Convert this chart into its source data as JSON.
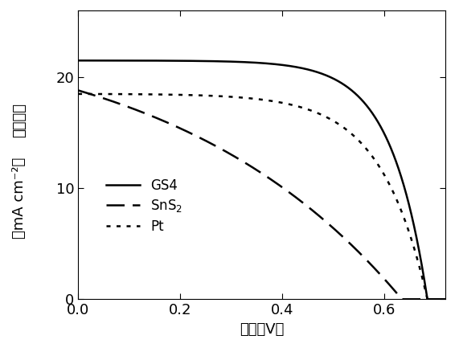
{
  "xlabel": "电压（V）",
  "ylabel_cn": "电流密度",
  "ylabel_en": "（mA cm⁻²）",
  "xlim": [
    0.0,
    0.72
  ],
  "ylim": [
    0.0,
    26.0
  ],
  "xticks": [
    0.0,
    0.2,
    0.4,
    0.6
  ],
  "yticks": [
    0,
    10,
    20
  ],
  "background_color": "#ffffff",
  "line_color": "#000000",
  "GS4": {
    "label": "GS4",
    "Isc": 21.5,
    "Voc": 0.685,
    "n": 14
  },
  "SnS2": {
    "label": "SnS$_2$",
    "Isc": 25.0,
    "Voc": 0.635,
    "n": 2.2
  },
  "Pt": {
    "label": "Pt",
    "Isc": 18.5,
    "Voc": 0.685,
    "n": 11
  },
  "linewidth": 1.8,
  "font_size": 13
}
